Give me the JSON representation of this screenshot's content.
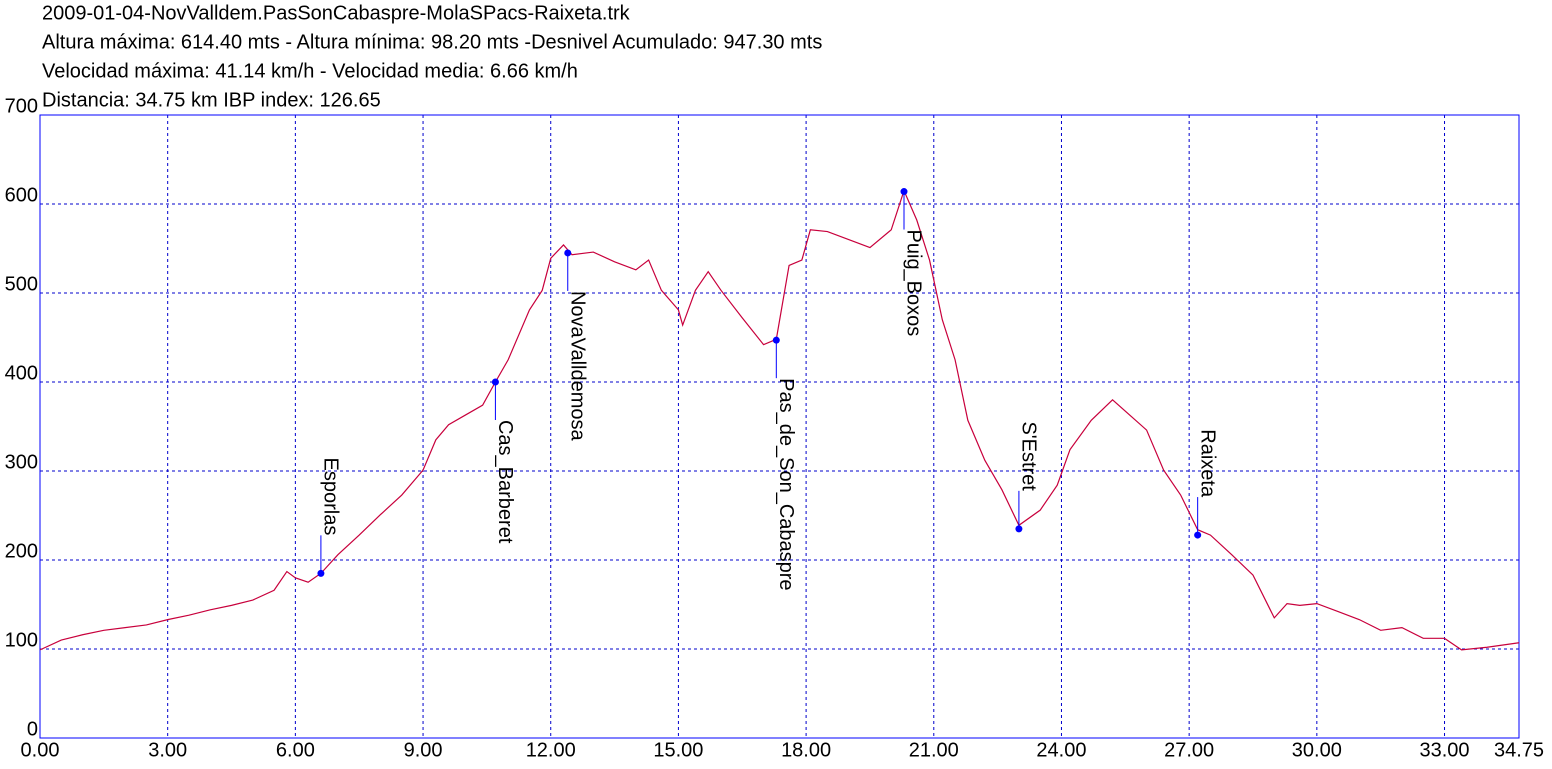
{
  "chart_data": {
    "type": "line",
    "title": "2009-01-04-NovValldem.PasSonCabaspre-MolaSPacs-Raixeta.trk",
    "subtitle": [
      "Altura máxima: 614.40 mts - Altura mínima: 98.20 mts -Desnivel Acumulado: 947.30 mts",
      "Velocidad máxima: 41.14 km/h - Velocidad media: 6.66 km/h",
      "Distancia: 34.75 km IBP index: 126.65"
    ],
    "x": [
      0,
      0.5,
      1.0,
      1.5,
      2.0,
      2.5,
      3.0,
      3.5,
      4.0,
      4.5,
      5.0,
      5.5,
      5.8,
      6.0,
      6.3,
      6.6,
      7.0,
      7.5,
      8.0,
      8.5,
      9.0,
      9.3,
      9.6,
      10.0,
      10.4,
      10.7,
      11.0,
      11.5,
      11.8,
      12.0,
      12.3,
      12.5,
      13.0,
      13.5,
      14.0,
      14.3,
      14.6,
      15.0,
      15.1,
      15.4,
      15.7,
      16.0,
      16.5,
      17.0,
      17.3,
      17.6,
      17.9,
      18.1,
      18.5,
      19.0,
      19.5,
      20.0,
      20.3,
      20.6,
      20.9,
      21.2,
      21.5,
      21.8,
      22.2,
      22.6,
      23.0,
      23.5,
      23.9,
      24.2,
      24.7,
      25.2,
      25.6,
      26.0,
      26.4,
      26.8,
      27.2,
      27.5,
      28.0,
      28.5,
      29.0,
      29.3,
      29.6,
      30.0,
      30.5,
      31.0,
      31.5,
      32.0,
      32.5,
      33.0,
      33.4,
      34.0,
      34.75
    ],
    "values": [
      99,
      110,
      116,
      121,
      124,
      127,
      133,
      138,
      144,
      149,
      155,
      166,
      187,
      180,
      175,
      185,
      206,
      228,
      251,
      273,
      301,
      335,
      352,
      363,
      374,
      400,
      425,
      481,
      503,
      539,
      554,
      543,
      546,
      535,
      526,
      537,
      503,
      481,
      464,
      503,
      524,
      503,
      472,
      442,
      448,
      531,
      537,
      571,
      569,
      560,
      551,
      571,
      615,
      582,
      537,
      470,
      425,
      357,
      312,
      279,
      239,
      256,
      284,
      324,
      357,
      380,
      363,
      346,
      301,
      273,
      234,
      228,
      206,
      183,
      135,
      151,
      149,
      151,
      142,
      133,
      121,
      124,
      112,
      112,
      99,
      102,
      107
    ],
    "color": "#c8003c",
    "waypoints": [
      {
        "label": "Esporlas",
        "x": 6.6,
        "y": 185,
        "side": "above"
      },
      {
        "label": "Cas_Barberet",
        "x": 10.7,
        "y": 400,
        "side": "below"
      },
      {
        "label": "NovaValldemosa",
        "x": 12.4,
        "y": 545,
        "side": "below"
      },
      {
        "label": "Pas_de_Son_Cabaspre",
        "x": 17.3,
        "y": 447,
        "side": "below"
      },
      {
        "label": "Puig_Boxos",
        "x": 20.3,
        "y": 614,
        "side": "below"
      },
      {
        "label": "S'Estret",
        "x": 23.0,
        "y": 235,
        "side": "above"
      },
      {
        "label": "Raixeta",
        "x": 27.2,
        "y": 228,
        "side": "above"
      }
    ],
    "waypoint_color": "#0000ff",
    "xlim": [
      0,
      34.75
    ],
    "ylim": [
      0,
      700
    ],
    "xticks": [
      {
        "value": 0,
        "label": "0.00"
      },
      {
        "value": 3,
        "label": "3.00"
      },
      {
        "value": 6,
        "label": "6.00"
      },
      {
        "value": 9,
        "label": "9.00"
      },
      {
        "value": 12,
        "label": "12.00"
      },
      {
        "value": 15,
        "label": "15.00"
      },
      {
        "value": 18,
        "label": "18.00"
      },
      {
        "value": 21,
        "label": "21.00"
      },
      {
        "value": 24,
        "label": "24.00"
      },
      {
        "value": 27,
        "label": "27.00"
      },
      {
        "value": 30,
        "label": "30.00"
      },
      {
        "value": 33,
        "label": "33.00"
      },
      34.75
    ],
    "yticks": [
      0,
      100,
      200,
      300,
      400,
      500,
      600,
      700
    ],
    "grid": true
  }
}
